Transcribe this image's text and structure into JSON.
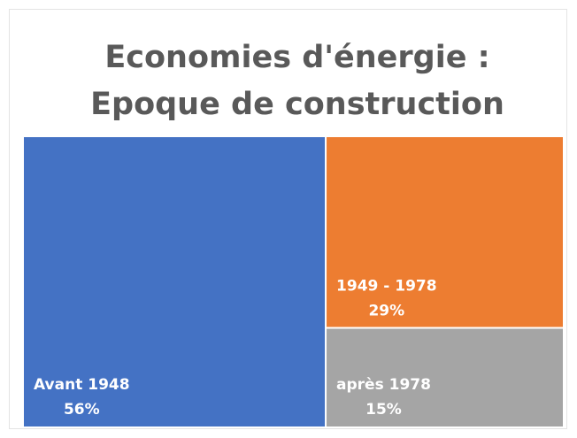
{
  "chart_data": {
    "type": "treemap",
    "title": [
      "Economies d'énergie :",
      "Epoque de construction"
    ],
    "categories": [
      "Avant 1948",
      "1949 - 1978",
      "après 1978"
    ],
    "values": [
      56,
      29,
      15
    ],
    "value_labels": [
      "56%",
      "29%",
      "15%"
    ],
    "colors": [
      "#4472c4",
      "#ed7d31",
      "#a5a5a5"
    ]
  }
}
